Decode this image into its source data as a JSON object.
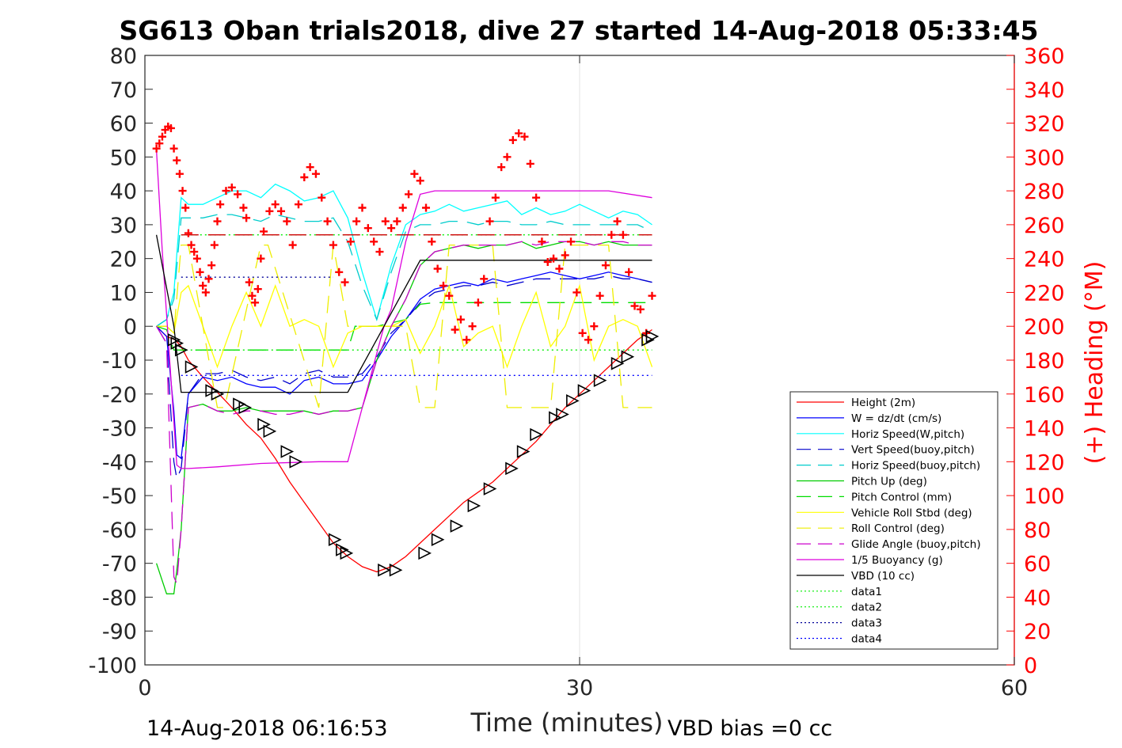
{
  "chart_data": {
    "type": "line",
    "title": "SG613 Oban trials2018, dive 27 started 14-Aug-2018 05:33:45",
    "xlabel": "Time (minutes)",
    "ylabel": "",
    "y2label": "(+) Heading (°M)",
    "xlim": [
      0,
      60
    ],
    "ylim": [
      -100,
      80
    ],
    "y2lim": [
      0,
      360
    ],
    "x_ticks": [
      "0",
      "30",
      "60"
    ],
    "y_ticks": [
      "-100",
      "-90",
      "-80",
      "-70",
      "-60",
      "-50",
      "-40",
      "-30",
      "-20",
      "-10",
      "0",
      "10",
      "20",
      "30",
      "40",
      "50",
      "60",
      "70",
      "80"
    ],
    "y2_ticks": [
      "0",
      "20",
      "40",
      "60",
      "80",
      "100",
      "120",
      "140",
      "160",
      "180",
      "200",
      "220",
      "240",
      "260",
      "280",
      "300",
      "320",
      "340",
      "360"
    ],
    "grid": "x",
    "legend_position": "lower-right",
    "footer_left": "14-Aug-2018 06:16:53",
    "footer_right": "VBD bias =0 cc",
    "axis_color_right": "#ff0000",
    "series": [
      {
        "name": "Height (2m)",
        "color": "#ff0000",
        "style": "solid",
        "x": [
          0.8,
          1.5,
          2.1,
          2.5,
          3,
          4,
          5,
          6,
          7,
          8,
          9,
          10,
          11,
          12,
          13,
          14,
          15,
          16,
          17,
          18,
          19,
          20,
          21,
          22,
          23,
          24,
          25,
          26,
          27,
          28,
          29,
          30,
          31,
          32,
          33,
          34,
          35
        ],
        "y": [
          0,
          -3,
          -4,
          -6,
          -10,
          -15,
          -19.5,
          -24,
          -29,
          -33,
          -39,
          -46,
          -52,
          -58,
          -64,
          -68,
          -71,
          -72.5,
          -71,
          -68,
          -64,
          -60,
          -56,
          -52,
          -49,
          -46,
          -42,
          -38,
          -34,
          -29,
          -24,
          -20,
          -16,
          -12,
          -8,
          -4,
          -1
        ]
      },
      {
        "name": "W = dz/dt (cm/s)",
        "color": "#0000ff",
        "style": "solid",
        "x": [
          0.8,
          1.5,
          2,
          2.2,
          2.5,
          3,
          4,
          5,
          6,
          7,
          8,
          9,
          10,
          11,
          12,
          13,
          14,
          15,
          16,
          17,
          18,
          19,
          20,
          21,
          22,
          23,
          24,
          25,
          26,
          27,
          28,
          29,
          30,
          31,
          32,
          33,
          34,
          35
        ],
        "y": [
          0,
          -3,
          -25,
          -38,
          -39,
          -20,
          -15,
          -16,
          -15,
          -17,
          -18,
          -18,
          -20,
          -16,
          -15,
          -17,
          -17,
          -16,
          -10,
          -3,
          2,
          8,
          11,
          12,
          13,
          12,
          14,
          13,
          14,
          15,
          16,
          15,
          14,
          15,
          16,
          15,
          14,
          13
        ]
      },
      {
        "name": "Horiz Speed(W,pitch)",
        "color": "#00ffff",
        "style": "solid",
        "x": [
          0.8,
          1.5,
          2,
          2.5,
          3,
          4,
          5,
          6,
          7,
          8,
          9,
          10,
          11,
          12,
          13,
          14,
          15,
          16,
          17,
          18,
          19,
          20,
          21,
          22,
          23,
          24,
          25,
          26,
          27,
          28,
          29,
          30,
          31,
          32,
          33,
          34,
          35
        ],
        "y": [
          0,
          2,
          10,
          38,
          36,
          36,
          38,
          40,
          40,
          38,
          42,
          40,
          37,
          38,
          40,
          32,
          16,
          2,
          18,
          30,
          33,
          34,
          36,
          34,
          35,
          36,
          37,
          33,
          35,
          33,
          34,
          36,
          34,
          32,
          34,
          33,
          30
        ]
      },
      {
        "name": "Vert Speed(buoy,pitch)",
        "color": "#0000cc",
        "style": "dashed",
        "x": [
          0.8,
          1.5,
          2,
          2.2,
          2.5,
          3,
          4,
          5,
          6,
          7,
          8,
          9,
          10,
          11,
          12,
          13,
          14,
          15,
          16,
          17,
          18,
          19,
          20,
          21,
          22,
          23,
          24,
          25,
          26,
          27,
          28,
          29,
          30,
          31,
          32,
          33,
          34,
          35
        ],
        "y": [
          0,
          -5,
          -40,
          -45,
          -42,
          -20,
          -14,
          -14,
          -13,
          -15,
          -16,
          -15,
          -17,
          -14,
          -13,
          -15,
          -15,
          -14,
          -9,
          -2,
          2,
          7,
          10,
          11,
          12,
          12,
          13,
          12,
          13,
          14,
          14,
          14,
          14,
          14,
          15,
          14,
          14,
          13
        ]
      },
      {
        "name": "Horiz Speed(buoy,pitch)",
        "color": "#00cccc",
        "style": "dashed",
        "x": [
          0.8,
          1.5,
          2,
          2.5,
          3,
          4,
          5,
          6,
          7,
          8,
          9,
          10,
          11,
          12,
          13,
          14,
          15,
          16,
          17,
          18,
          19,
          20,
          21,
          22,
          23,
          24,
          25,
          26,
          27,
          28,
          29,
          30,
          31,
          32,
          33,
          34,
          35
        ],
        "y": [
          0,
          2,
          8,
          32,
          32,
          32,
          33,
          33,
          32,
          31,
          33,
          32,
          31,
          31,
          32,
          25,
          12,
          2,
          16,
          28,
          30,
          30,
          31,
          31,
          30,
          31,
          31,
          30,
          30,
          31,
          30,
          30,
          30,
          30,
          30,
          30,
          28
        ]
      },
      {
        "name": "Pitch Up (deg)",
        "color": "#00cc00",
        "style": "solid",
        "x": [
          0.8,
          1.5,
          2,
          2.2,
          2.5,
          3,
          4,
          5,
          6,
          7,
          8,
          9,
          10,
          11,
          12,
          13,
          14,
          15,
          16,
          17,
          18,
          19,
          20,
          21,
          22,
          23,
          24,
          25,
          26,
          27,
          28,
          29,
          30,
          31,
          32,
          33,
          34,
          35
        ],
        "y": [
          -70,
          -79,
          -79,
          -72,
          -60,
          -24,
          -23,
          -25,
          -25,
          -24,
          -25,
          -25,
          -25,
          -25,
          -26,
          -25,
          -25,
          -24,
          -10,
          0,
          8,
          18,
          22,
          23,
          24,
          23,
          24,
          24,
          25,
          23,
          24,
          25,
          25,
          24,
          25,
          24,
          24,
          24
        ]
      },
      {
        "name": "Pitch Control (mm)",
        "color": "#00dd00",
        "style": "dashed",
        "x": [
          0.8,
          1.5,
          2,
          2.5,
          14,
          14.5,
          16,
          18,
          19,
          20,
          35
        ],
        "y": [
          0,
          -1,
          -7,
          -7,
          -7,
          0,
          0,
          2,
          6.5,
          7,
          7
        ]
      },
      {
        "name": "Vehicle Roll Stbd (deg)",
        "color": "#ffff00",
        "style": "solid",
        "x": [
          0.8,
          1.5,
          2,
          2.5,
          3,
          4,
          5,
          6,
          7,
          8,
          9,
          10,
          11,
          12,
          13,
          14,
          15,
          16,
          17,
          18,
          19,
          20,
          21,
          22,
          23,
          24,
          25,
          26,
          27,
          28,
          29,
          30,
          31,
          32,
          33,
          34,
          35
        ],
        "y": [
          0,
          0,
          -2,
          10,
          12,
          0,
          -12,
          0,
          10,
          0,
          12,
          0,
          2,
          0,
          -12,
          -2,
          0,
          0,
          0,
          2,
          -8,
          0,
          12,
          -6,
          -2,
          0,
          -12,
          0,
          10,
          -6,
          0,
          12,
          -10,
          0,
          2,
          0,
          -12
        ]
      },
      {
        "name": "Roll Control (deg)",
        "color": "#eeee00",
        "style": "dashed",
        "x": [
          0.8,
          1.5,
          2,
          2.5,
          3,
          5,
          5.5,
          8,
          8.5,
          12,
          13,
          14,
          15,
          18,
          19,
          20,
          21,
          24,
          25,
          28,
          29,
          32,
          33,
          35
        ],
        "y": [
          0,
          0,
          -2,
          24,
          24,
          -24,
          -24,
          24,
          24,
          -24,
          24,
          0,
          0,
          0,
          -24,
          -24,
          24,
          24,
          -24,
          -24,
          24,
          24,
          -24,
          -24
        ]
      },
      {
        "name": "Glide Angle (buoy,pitch)",
        "color": "#cc00cc",
        "style": "dashed",
        "x": [
          0.8,
          1.5,
          2,
          2.2,
          2.5,
          3,
          4,
          5,
          6,
          7,
          8,
          9,
          10,
          11,
          12,
          13,
          14,
          15,
          16,
          17,
          18,
          19,
          20,
          21,
          22,
          23,
          24,
          25,
          26,
          27,
          28,
          29,
          30,
          31,
          32,
          33,
          34,
          35
        ],
        "y": [
          0,
          -5,
          -74,
          -76,
          -60,
          -24,
          -23,
          -25,
          -26,
          -25,
          -25,
          -26,
          -26,
          -25,
          -26,
          -25,
          -25,
          -24,
          -10,
          0,
          8,
          18,
          22,
          23,
          24,
          24,
          24,
          24,
          25,
          24,
          25,
          25,
          25,
          24,
          25,
          25,
          24,
          24
        ]
      },
      {
        "name": "1/5 Buoyancy (g)",
        "color": "#dd00dd",
        "style": "solid",
        "x": [
          0.8,
          1.2,
          2.2,
          2.5,
          3,
          5,
          8,
          12,
          14,
          16.5,
          17,
          18,
          19,
          20,
          25,
          30,
          32,
          35
        ],
        "y": [
          52,
          22,
          -41,
          -42,
          -42,
          -41.5,
          -40.5,
          -40,
          -40,
          0,
          5,
          25,
          39,
          40,
          40,
          40,
          40,
          38
        ]
      },
      {
        "name": "VBD (10 cc)",
        "color": "#000000",
        "style": "solid",
        "x": [
          0.8,
          2,
          2.5,
          14,
          16.5,
          19,
          35
        ],
        "y": [
          27,
          0,
          -19.5,
          -19.5,
          0,
          19.5,
          19.5
        ]
      },
      {
        "name": "data1",
        "color": "#00ee00",
        "style": "dotted",
        "x": [
          2.5,
          35
        ],
        "y": [
          27,
          27
        ]
      },
      {
        "name": "data2",
        "color": "#00ee00",
        "style": "dotted",
        "x": [
          2.5,
          35
        ],
        "y": [
          -7,
          -7
        ]
      },
      {
        "name": "data3",
        "color": "#000099",
        "style": "dotted",
        "x": [
          2.5,
          13
        ],
        "y": [
          14.5,
          14.5
        ]
      },
      {
        "name": "data4",
        "color": "#0000ff",
        "style": "dotted",
        "x": [
          2.5,
          35
        ],
        "y": [
          -14.5,
          -14.5
        ]
      },
      {
        "name": "",
        "color": "#cc0000",
        "style": "dashed",
        "x": [
          2.5,
          35
        ],
        "y": [
          27,
          27
        ]
      }
    ],
    "heading_points": {
      "color": "#ff0000",
      "marker": "+",
      "axis": "right",
      "x": [
        0.8,
        1.0,
        1.2,
        1.4,
        1.6,
        1.8,
        2.0,
        2.2,
        2.4,
        2.6,
        2.8,
        3.0,
        3.2,
        3.4,
        3.6,
        3.8,
        4.0,
        4.2,
        4.4,
        4.6,
        4.8,
        5.0,
        5.2,
        5.6,
        6.0,
        6.4,
        6.8,
        7.0,
        7.2,
        7.4,
        7.6,
        7.8,
        8.0,
        8.2,
        8.6,
        9.0,
        9.4,
        9.8,
        10.2,
        10.6,
        11.0,
        11.4,
        11.8,
        12.2,
        12.6,
        13.0,
        13.4,
        13.8,
        14.2,
        14.6,
        15.0,
        15.4,
        15.8,
        16.2,
        16.6,
        17.0,
        17.4,
        17.8,
        18.2,
        18.6,
        19.0,
        19.4,
        19.8,
        20.2,
        20.6,
        21.0,
        21.4,
        21.8,
        22.2,
        22.6,
        23.0,
        23.4,
        23.8,
        24.2,
        24.6,
        25.0,
        25.4,
        25.8,
        26.2,
        26.6,
        27.0,
        27.4,
        27.8,
        28.2,
        28.6,
        29.0,
        29.4,
        29.8,
        30.2,
        30.6,
        31.0,
        31.4,
        31.8,
        32.2,
        32.6,
        33.0,
        33.4,
        33.8,
        34.2,
        34.6,
        35.0
      ],
      "y": [
        305,
        308,
        312,
        316,
        318,
        317,
        305,
        298,
        290,
        280,
        270,
        255,
        248,
        244,
        240,
        232,
        224,
        220,
        228,
        236,
        248,
        262,
        272,
        280,
        282,
        278,
        270,
        264,
        226,
        218,
        214,
        222,
        240,
        256,
        268,
        272,
        268,
        262,
        248,
        272,
        288,
        294,
        290,
        276,
        262,
        248,
        232,
        226,
        250,
        262,
        270,
        258,
        250,
        244,
        262,
        258,
        262,
        270,
        278,
        290,
        286,
        270,
        250,
        234,
        224,
        218,
        198,
        204,
        192,
        200,
        214,
        228,
        262,
        276,
        294,
        300,
        310,
        314,
        312,
        296,
        276,
        250,
        238,
        240,
        234,
        242,
        250,
        220,
        196,
        192,
        200,
        218,
        236,
        254,
        262,
        254,
        232,
        212,
        210,
        196,
        218
      ]
    },
    "triangle_markers": {
      "color": "#000000",
      "marker": "triangle",
      "x": [
        2.0,
        2.2,
        2.5,
        3.2,
        4.6,
        5.0,
        6.5,
        6.9,
        8.2,
        8.6,
        9.8,
        10.4,
        13.1,
        13.6,
        13.9,
        16.5,
        17.3,
        19.3,
        20.2,
        21.5,
        22.7,
        23.8,
        25.3,
        26.1,
        27.0,
        28.3,
        28.8,
        29.5,
        30.3,
        31.4,
        32.6,
        33.3,
        34.7,
        35.0
      ],
      "y": [
        -4,
        -5,
        -7,
        -12,
        -19,
        -20,
        -23,
        -24,
        -29,
        -31,
        -37,
        -40,
        -63,
        -66,
        -67,
        -72,
        -72,
        -67,
        -63,
        -59,
        -53,
        -48,
        -42,
        -37,
        -32,
        -27,
        -26,
        -22,
        -19,
        -16,
        -11,
        -9,
        -4,
        -3
      ]
    }
  }
}
